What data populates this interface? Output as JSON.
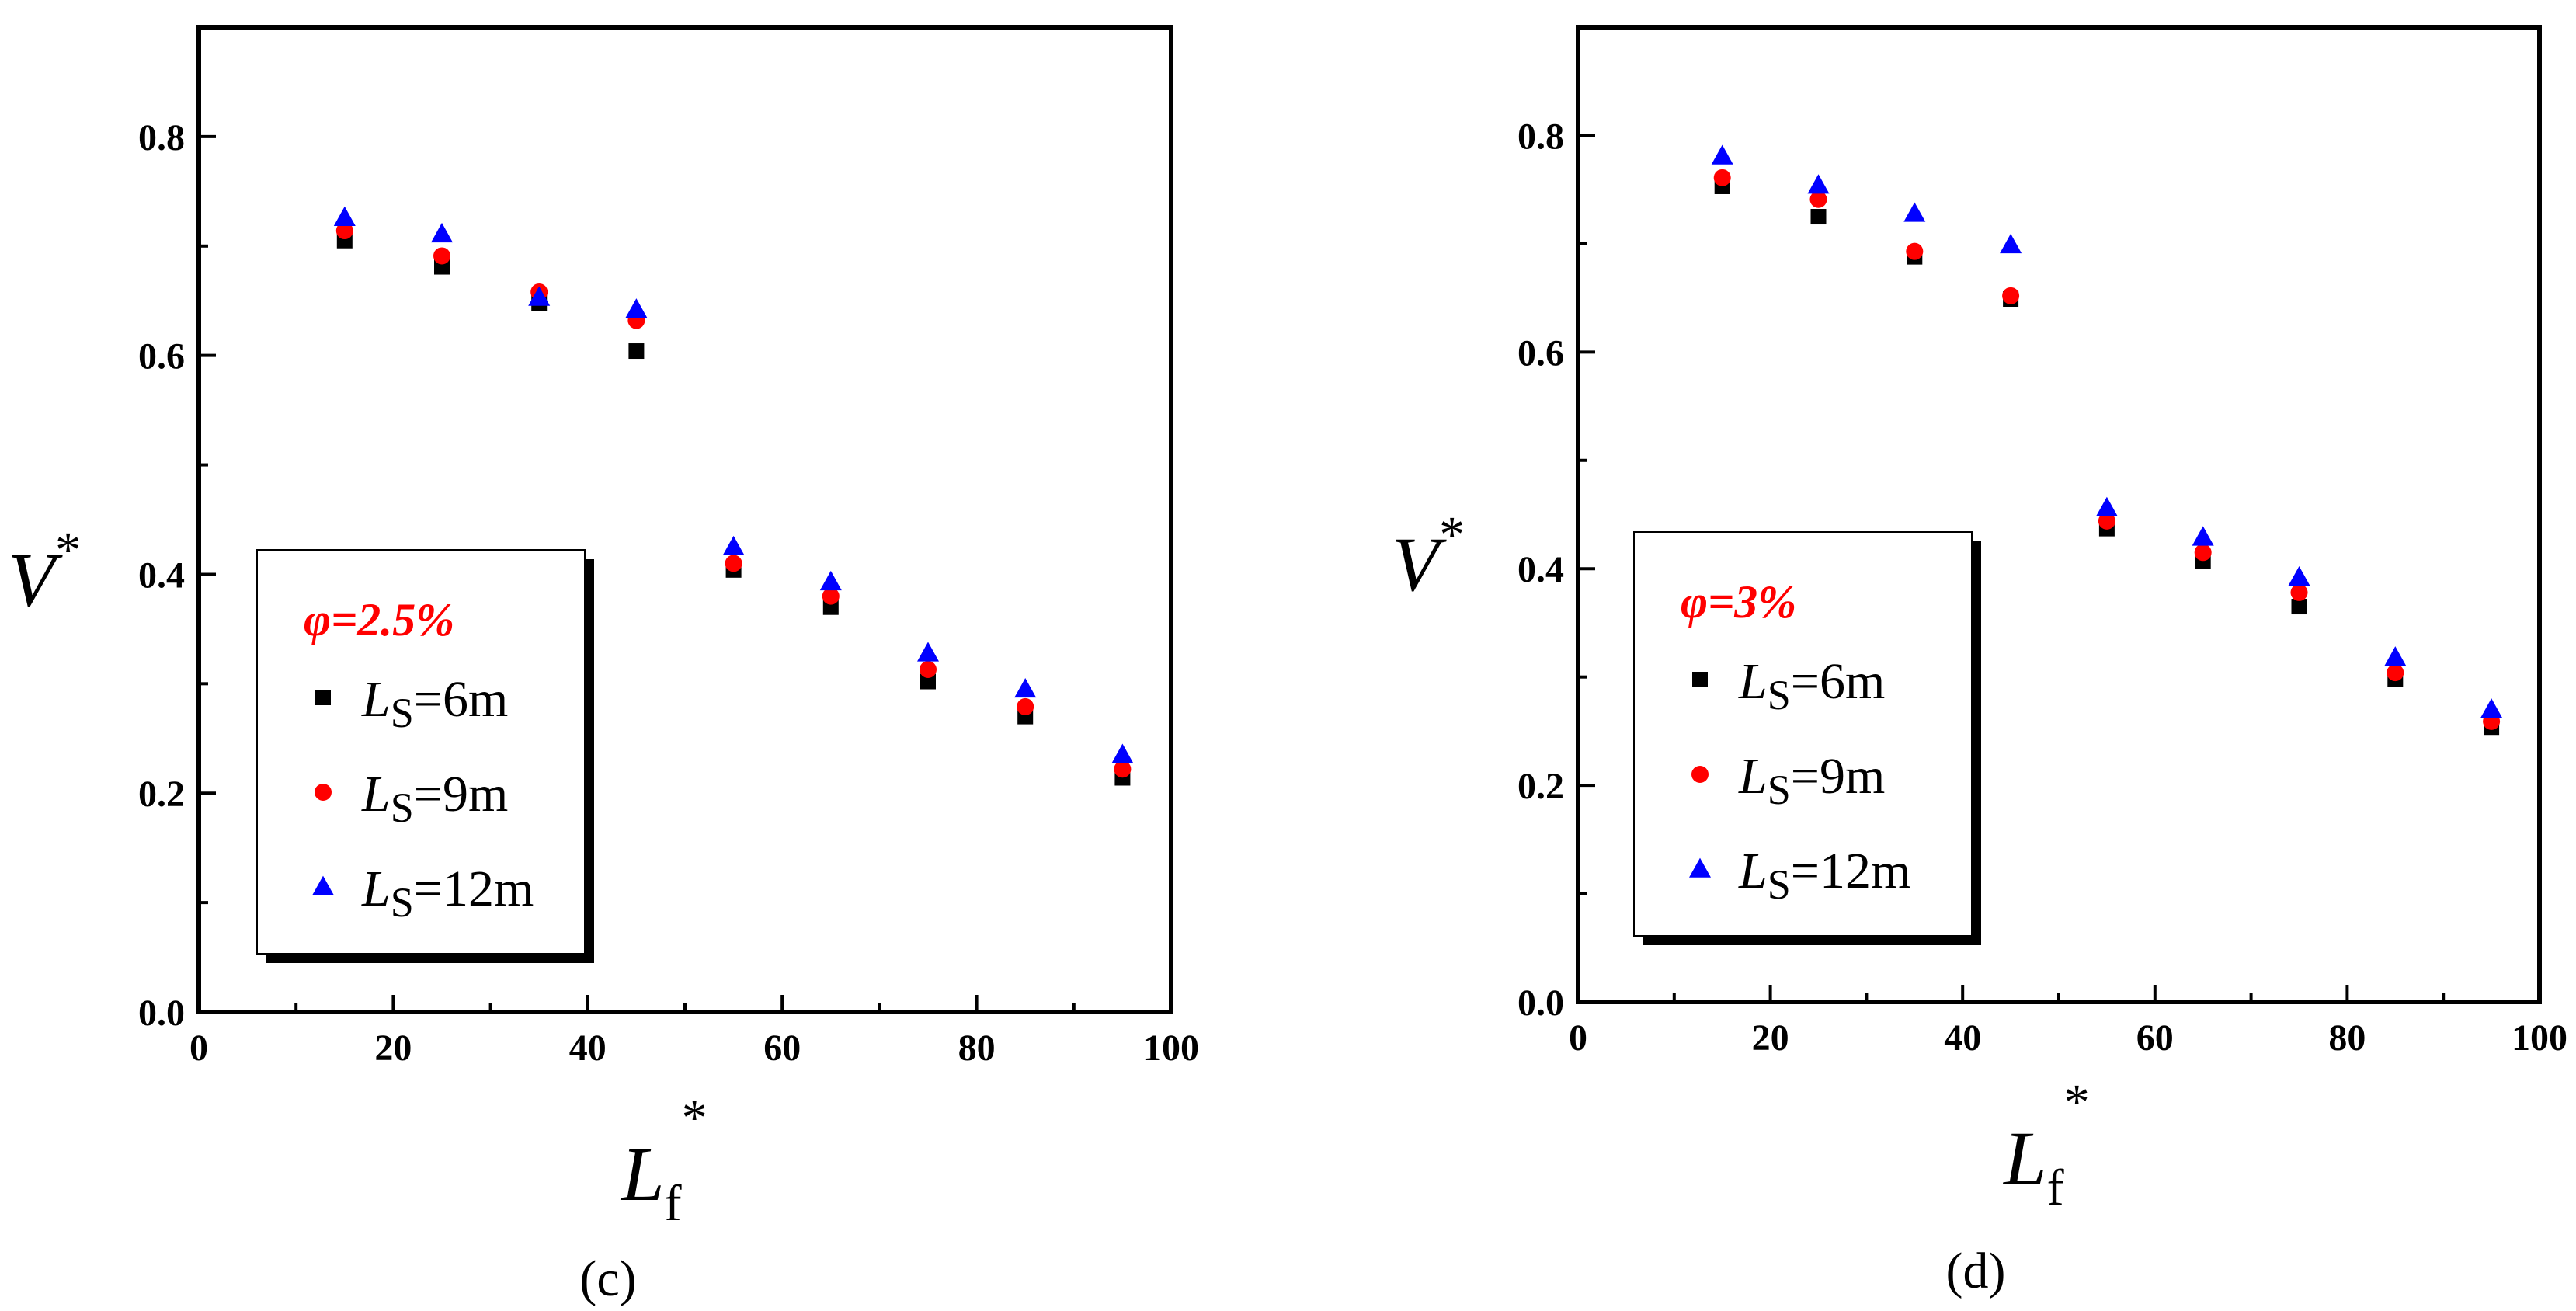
{
  "chart_data": [
    {
      "type": "scatter",
      "panel_label": "(c)",
      "xlabel": {
        "main": "L",
        "sub": "f",
        "sup": "*"
      },
      "ylabel": {
        "main": "V",
        "sup": "*"
      },
      "xlim": [
        0,
        100
      ],
      "ylim": [
        0,
        0.9
      ],
      "xticks": [
        "0",
        "20",
        "40",
        "60",
        "80",
        "100"
      ],
      "yticks": [
        "0.0",
        "0.2",
        "0.4",
        "0.6",
        "0.8"
      ],
      "legend": {
        "title": "φ=2.5%",
        "title_color": "#ff0000",
        "location": "center-left"
      },
      "series": [
        {
          "name": "LS=6m",
          "label_main": "L",
          "label_sub": "S",
          "label_rest": "=6m",
          "marker": "square",
          "color": "#000000",
          "x": [
            15,
            25,
            35,
            45,
            55,
            65,
            75,
            85,
            95
          ],
          "y": [
            0.705,
            0.681,
            0.648,
            0.604,
            0.404,
            0.37,
            0.302,
            0.27,
            0.214
          ]
        },
        {
          "name": "LS=9m",
          "label_main": "L",
          "label_sub": "S",
          "label_rest": "=9m",
          "marker": "circle",
          "color": "#ff0000",
          "x": [
            15,
            25,
            35,
            45,
            55,
            65,
            75,
            85,
            95
          ],
          "y": [
            0.714,
            0.691,
            0.658,
            0.632,
            0.41,
            0.38,
            0.313,
            0.279,
            0.222
          ]
        },
        {
          "name": "LS=12m",
          "label_main": "L",
          "label_sub": "S",
          "label_rest": "=12m",
          "marker": "triangle",
          "color": "#0000ff",
          "x": [
            15,
            25,
            35,
            45,
            55,
            65,
            75,
            85,
            95
          ],
          "y": [
            0.726,
            0.711,
            0.653,
            0.642,
            0.425,
            0.393,
            0.328,
            0.295,
            0.235
          ]
        }
      ]
    },
    {
      "type": "scatter",
      "panel_label": "(d)",
      "xlabel": {
        "main": "L",
        "sub": "f",
        "sup": "*"
      },
      "ylabel": {
        "main": "V",
        "sup": "*"
      },
      "xlim": [
        0,
        100
      ],
      "ylim": [
        0,
        0.9
      ],
      "xticks": [
        "0",
        "20",
        "40",
        "60",
        "80",
        "100"
      ],
      "yticks": [
        "0.0",
        "0.2",
        "0.4",
        "0.6",
        "0.8"
      ],
      "legend": {
        "title": "φ=3%",
        "title_color": "#ff0000",
        "location": "center-left"
      },
      "series": [
        {
          "name": "LS=6m",
          "label_main": "L",
          "label_sub": "S",
          "label_rest": "=6m",
          "marker": "square",
          "color": "#000000",
          "x": [
            15,
            25,
            35,
            45,
            55,
            65,
            75,
            85,
            95
          ],
          "y": [
            0.753,
            0.725,
            0.688,
            0.649,
            0.437,
            0.407,
            0.365,
            0.298,
            0.253
          ]
        },
        {
          "name": "LS=9m",
          "label_main": "L",
          "label_sub": "S",
          "label_rest": "=9m",
          "marker": "circle",
          "color": "#ff0000",
          "x": [
            15,
            25,
            35,
            45,
            55,
            65,
            75,
            85,
            95
          ],
          "y": [
            0.761,
            0.741,
            0.693,
            0.652,
            0.444,
            0.415,
            0.378,
            0.304,
            0.259
          ]
        },
        {
          "name": "LS=12m",
          "label_main": "L",
          "label_sub": "S",
          "label_rest": "=12m",
          "marker": "triangle",
          "color": "#0000ff",
          "x": [
            15,
            25,
            35,
            45,
            55,
            65,
            75,
            85,
            95
          ],
          "y": [
            0.781,
            0.754,
            0.728,
            0.699,
            0.456,
            0.429,
            0.392,
            0.318,
            0.27
          ]
        }
      ]
    }
  ]
}
